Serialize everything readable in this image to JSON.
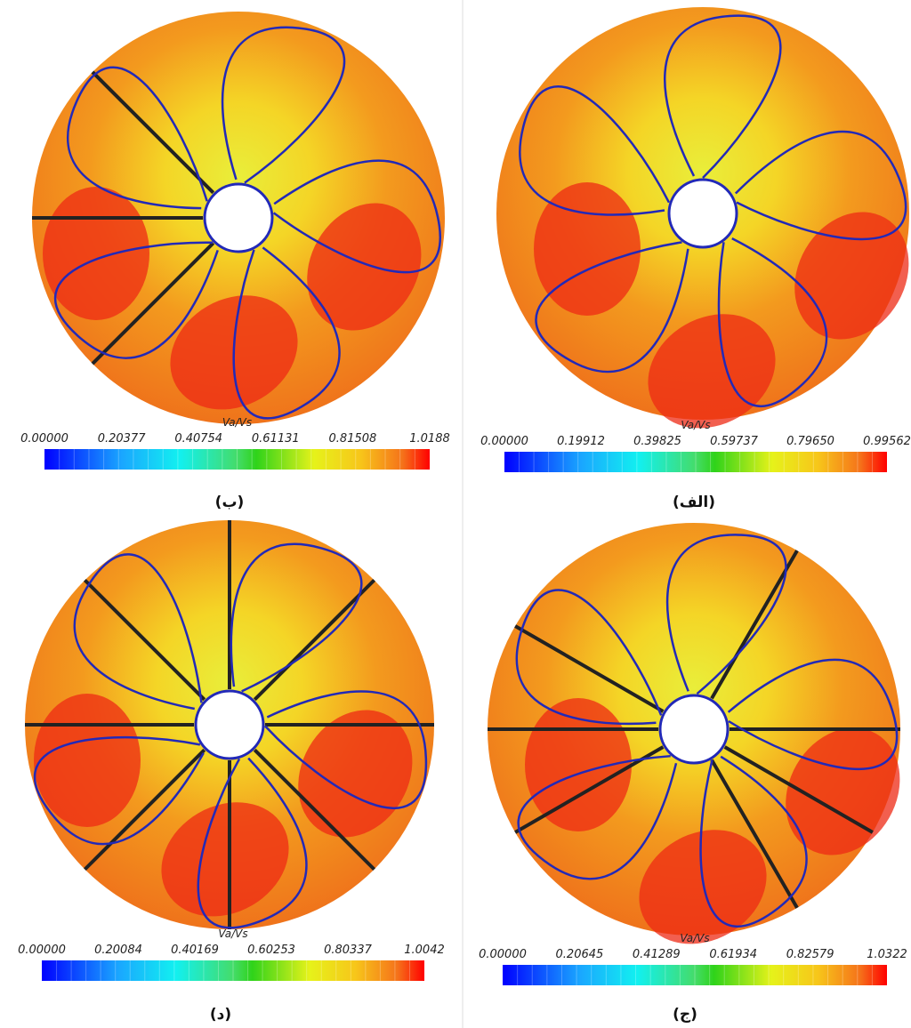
{
  "panels": [
    {
      "caption": "(ب)",
      "colorbar_title": "Va/Vs",
      "ticks": [
        "0.00000",
        "0.20377",
        "0.40754",
        "0.61131",
        "0.81508",
        "1.0188"
      ]
    },
    {
      "caption": "(الف)",
      "colorbar_title": "Va/Vs",
      "ticks": [
        "0.00000",
        "0.19912",
        "0.39825",
        "0.59737",
        "0.79650",
        "0.99562"
      ]
    },
    {
      "caption": "(د)",
      "colorbar_title": "Va/Vs",
      "ticks": [
        "0.00000",
        "0.20084",
        "0.40169",
        "0.60253",
        "0.80337",
        "1.0042"
      ]
    },
    {
      "caption": "(ج)",
      "colorbar_title": "Va/Vs",
      "ticks": [
        "0.00000",
        "0.20645",
        "0.41289",
        "0.61934",
        "0.82579",
        "1.0322"
      ]
    }
  ]
}
